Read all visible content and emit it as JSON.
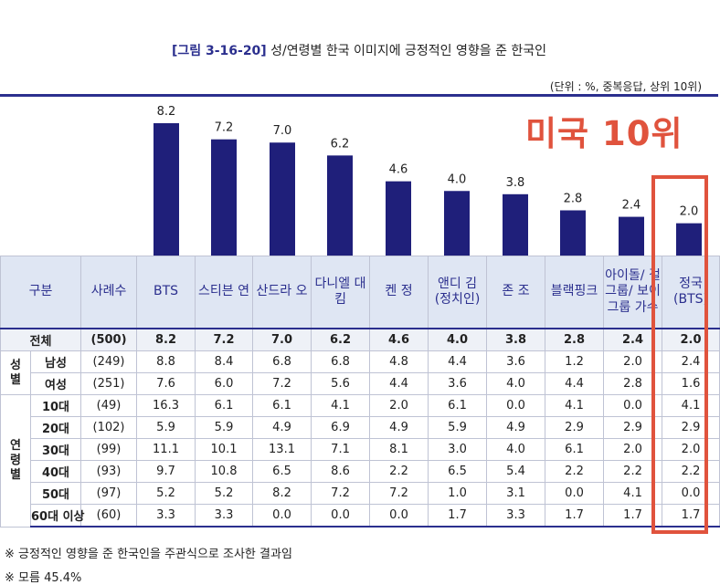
{
  "title": {
    "fig": "[그림 3-16-20]",
    "text": "성/연령별 한국 이미지에 긍정적인 영향을 준 한국인"
  },
  "unit": "(단위 : %, 중복응답, 상위 10위)",
  "badge": "미국 10위",
  "colors": {
    "bar": "#1f1f7a",
    "accent": "#e0533d",
    "header": "#2b2f8e"
  },
  "chart_data": {
    "type": "bar",
    "title": "성/연령별 한국 이미지에 긍정적인 영향을 준 한국인",
    "categories": [
      "BTS",
      "스티븐 연",
      "산드라 오",
      "다니엘 대 킴",
      "켄 정",
      "앤디 김 (정치인)",
      "존 조",
      "블랙핑크",
      "아이돌/걸그룹/보이그룹 가수",
      "정국 (BTS)"
    ],
    "values": [
      8.2,
      7.2,
      7.0,
      6.2,
      4.6,
      4.0,
      3.8,
      2.8,
      2.4,
      2.0
    ],
    "labels": [
      "8.2",
      "7.2",
      "7.0",
      "6.2",
      "4.6",
      "4.0",
      "3.8",
      "2.8",
      "2.4",
      "2.0"
    ],
    "ylim": [
      0,
      8.2
    ],
    "xlabel": "",
    "ylabel": ""
  },
  "table": {
    "headers": [
      "구분",
      "사례수",
      "BTS",
      "스티븐 연",
      "산드라 오",
      "다니엘 대 킴",
      "켄 정",
      "앤디 김 (정치인)",
      "존 조",
      "블랙핑크",
      "아이돌/ 걸그룹/ 보이그룹 가수",
      "정국 (BTS)"
    ],
    "total": {
      "label": "전체",
      "n": "(500)",
      "values": [
        "8.2",
        "7.2",
        "7.0",
        "6.2",
        "4.6",
        "4.0",
        "3.8",
        "2.8",
        "2.4",
        "2.0"
      ]
    },
    "groups": [
      {
        "name": "성별",
        "rows": [
          {
            "label": "남성",
            "n": "(249)",
            "values": [
              "8.8",
              "8.4",
              "6.8",
              "6.8",
              "4.8",
              "4.4",
              "3.6",
              "1.2",
              "2.0",
              "2.4"
            ]
          },
          {
            "label": "여성",
            "n": "(251)",
            "values": [
              "7.6",
              "6.0",
              "7.2",
              "5.6",
              "4.4",
              "3.6",
              "4.0",
              "4.4",
              "2.8",
              "1.6"
            ]
          }
        ]
      },
      {
        "name": "연령별",
        "rows": [
          {
            "label": "10대",
            "n": "(49)",
            "values": [
              "16.3",
              "6.1",
              "6.1",
              "4.1",
              "2.0",
              "6.1",
              "0.0",
              "4.1",
              "0.0",
              "4.1"
            ]
          },
          {
            "label": "20대",
            "n": "(102)",
            "values": [
              "5.9",
              "5.9",
              "4.9",
              "6.9",
              "4.9",
              "5.9",
              "4.9",
              "2.9",
              "2.9",
              "2.9"
            ]
          },
          {
            "label": "30대",
            "n": "(99)",
            "values": [
              "11.1",
              "10.1",
              "13.1",
              "7.1",
              "8.1",
              "3.0",
              "4.0",
              "6.1",
              "2.0",
              "2.0"
            ]
          },
          {
            "label": "40대",
            "n": "(93)",
            "values": [
              "9.7",
              "10.8",
              "6.5",
              "8.6",
              "2.2",
              "6.5",
              "5.4",
              "2.2",
              "2.2",
              "2.2"
            ]
          },
          {
            "label": "50대",
            "n": "(97)",
            "values": [
              "5.2",
              "5.2",
              "8.2",
              "7.2",
              "7.2",
              "1.0",
              "3.1",
              "0.0",
              "4.1",
              "0.0"
            ]
          },
          {
            "label": "60대 이상",
            "n": "(60)",
            "values": [
              "3.3",
              "3.3",
              "0.0",
              "0.0",
              "0.0",
              "1.7",
              "3.3",
              "1.7",
              "1.7",
              "1.7"
            ]
          }
        ]
      }
    ]
  },
  "notes": [
    "※ 긍정적인 영향을 준 한국인을 주관식으로 조사한 결과임",
    "※ 모름 45.4%"
  ]
}
